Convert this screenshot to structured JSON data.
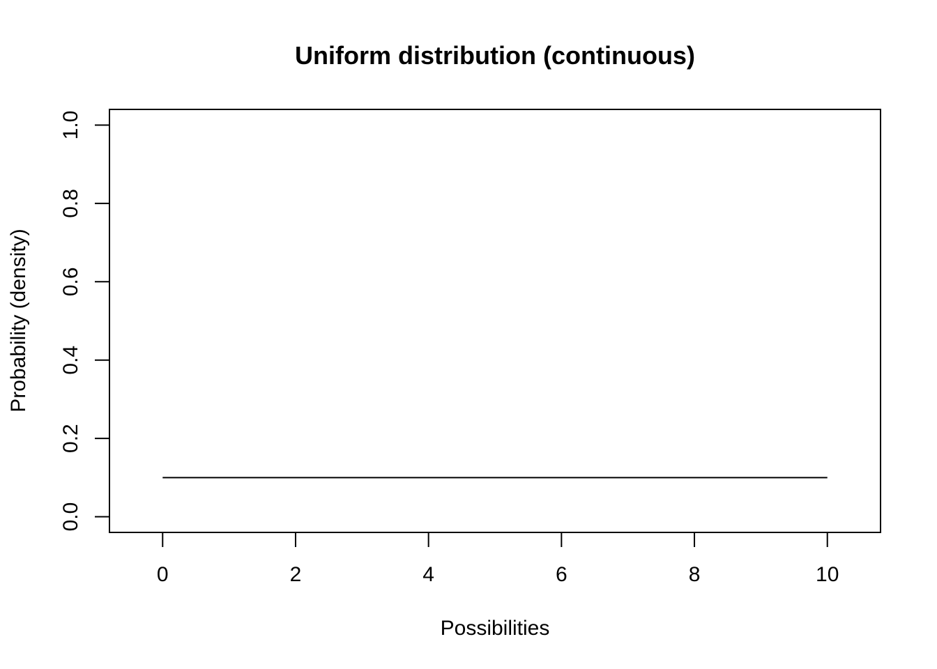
{
  "chart_data": {
    "type": "line",
    "title": "Uniform distribution (continuous)",
    "xlabel": "Possibilities",
    "ylabel": "Probability (density)",
    "xlim": [
      -0.8,
      10.8
    ],
    "ylim": [
      -0.04,
      1.04
    ],
    "x_ticks": [
      0,
      2,
      4,
      6,
      8,
      10
    ],
    "x_tick_labels": [
      "0",
      "2",
      "4",
      "6",
      "8",
      "10"
    ],
    "y_ticks": [
      0.0,
      0.2,
      0.4,
      0.6,
      0.8,
      1.0
    ],
    "y_tick_labels": [
      "0.0",
      "0.2",
      "0.4",
      "0.6",
      "0.8",
      "1.0"
    ],
    "grid": false,
    "series": [
      {
        "name": "density",
        "color": "#000000",
        "x": [
          0,
          10
        ],
        "y": [
          0.1,
          0.1
        ]
      }
    ]
  }
}
